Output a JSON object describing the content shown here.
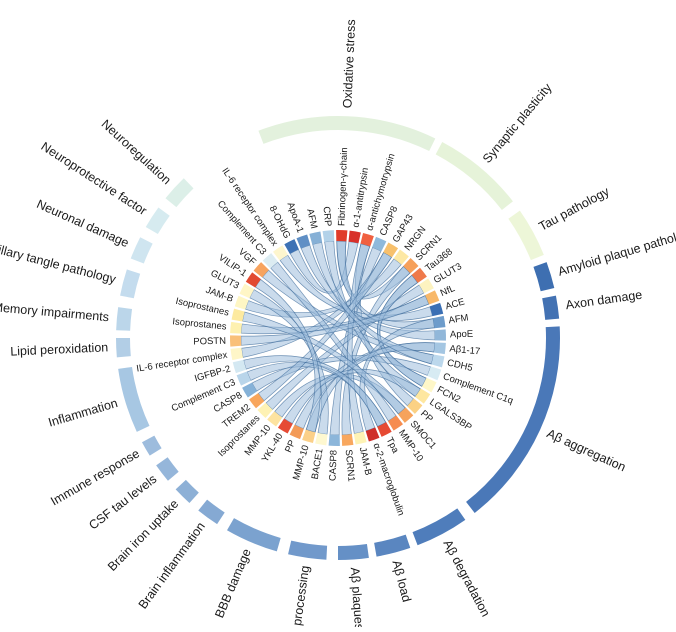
{
  "chart_data": {
    "type": "chord",
    "categories": [
      {
        "id": "oxidative-stress",
        "label": "Oxidative stress",
        "color": "#e3f1dd",
        "group": "outer"
      },
      {
        "id": "synaptic-plasticity",
        "label": "Synaptic plasticity",
        "color": "#e6f3d9",
        "group": "outer"
      },
      {
        "id": "tau-pathology",
        "label": "Tau pathology",
        "color": "#edf6d8",
        "group": "outer"
      },
      {
        "id": "amyloid-plaque-pathology",
        "label": "Amyloid plaque pathology",
        "color": "#3e6fb1",
        "group": "outer"
      },
      {
        "id": "axon-damage",
        "label": "Axon damage",
        "color": "#4372b3",
        "group": "outer"
      },
      {
        "id": "ab-aggregation",
        "label": "Aβ aggregation",
        "color": "#4a78b8",
        "group": "outer"
      },
      {
        "id": "ab-degradation",
        "label": "Aβ degradation",
        "color": "#4f7dbb",
        "group": "outer"
      },
      {
        "id": "ab-load",
        "label": "Aβ load",
        "color": "#5a86c0",
        "group": "outer"
      },
      {
        "id": "ab-plaques",
        "label": "Aβ plaques",
        "color": "#6590c6",
        "group": "outer"
      },
      {
        "id": "ab-processing",
        "label": "Aβ processing",
        "color": "#7199cb",
        "group": "outer"
      },
      {
        "id": "bbb-damage",
        "label": "BBB damage",
        "color": "#7ba2cf",
        "group": "outer"
      },
      {
        "id": "brain-inflammation",
        "label": "Brain inflammation",
        "color": "#85a9d3",
        "group": "outer"
      },
      {
        "id": "brain-iron-uptake",
        "label": "Brain iron uptake",
        "color": "#8db0d6",
        "group": "outer"
      },
      {
        "id": "csf-tau-levels",
        "label": "CSF tau levels",
        "color": "#95b6da",
        "group": "outer"
      },
      {
        "id": "immune-response",
        "label": "Immune response",
        "color": "#9dbcdd",
        "group": "outer"
      },
      {
        "id": "inflammation",
        "label": "Inflammation",
        "color": "#a7c7e3",
        "group": "outer"
      },
      {
        "id": "lipid-peroxidation",
        "label": "Lipid peroxidation",
        "color": "#b2cee6",
        "group": "outer"
      },
      {
        "id": "memory-impairments",
        "label": "Memory impairments",
        "color": "#bbd6ea",
        "group": "outer"
      },
      {
        "id": "neurofibrillary-tangle-pathology",
        "label": "Neurofibrillary tangle pathology",
        "color": "#c4dcee",
        "group": "outer"
      },
      {
        "id": "neuronal-damage",
        "label": "Neuronal damage",
        "color": "#cfe5f0",
        "group": "outer"
      },
      {
        "id": "neuroprotective-factor",
        "label": "Neuroprotective factor",
        "color": "#d6ebf0",
        "group": "outer"
      },
      {
        "id": "neuroregulation",
        "label": "Neuroregulation",
        "color": "#dcefe8",
        "group": "outer"
      }
    ],
    "biomarkers": [
      {
        "label": "Fibrinogen-γ-chain",
        "color": "#e03b2a"
      },
      {
        "label": "α-1-antitrypsin",
        "color": "#d8302a"
      },
      {
        "label": "α-antichymotrypsin",
        "color": "#f06040"
      },
      {
        "label": "CASP8",
        "color": "#8fb9db"
      },
      {
        "label": "GAP43",
        "color": "#f7c06c"
      },
      {
        "label": "NRGN",
        "color": "#fde8a4"
      },
      {
        "label": "SCRN1",
        "color": "#f6a05a"
      },
      {
        "label": "Tau368",
        "color": "#ef7a4a"
      },
      {
        "label": "GLUT3",
        "color": "#fdf3c0"
      },
      {
        "label": "NfL",
        "color": "#f8b86a"
      },
      {
        "label": "ACE",
        "color": "#3a6fb4"
      },
      {
        "label": "AFM",
        "color": "#6d9ccb"
      },
      {
        "label": "ApoE",
        "color": "#91b7d9"
      },
      {
        "label": "Aβ1-17",
        "color": "#a4c6e2"
      },
      {
        "label": "CDH5",
        "color": "#bcd8ec"
      },
      {
        "label": "Complement C1q",
        "color": "#d7ebf3"
      },
      {
        "label": "FCN2",
        "color": "#fef7c8"
      },
      {
        "label": "LGALS3BP",
        "color": "#fee7a0"
      },
      {
        "label": "PP",
        "color": "#fbd184"
      },
      {
        "label": "SMOC1",
        "color": "#f6a35c"
      },
      {
        "label": "MMP-10",
        "color": "#f68c4f"
      },
      {
        "label": "Tpa",
        "color": "#e64a33"
      },
      {
        "label": "α-2-macroglobulin",
        "color": "#cf2f2a"
      },
      {
        "label": "JAM-B",
        "color": "#fef3b5"
      },
      {
        "label": "SCRN1",
        "color": "#f8a75e"
      },
      {
        "label": "CASP8",
        "color": "#8cb6da"
      },
      {
        "label": "BACE1",
        "color": "#fef8d0"
      },
      {
        "label": "MMP-10",
        "color": "#fbd089"
      },
      {
        "label": "PP",
        "color": "#f39a57"
      },
      {
        "label": "YKL-40",
        "color": "#e64b35"
      },
      {
        "label": "MMP-10",
        "color": "#fde3a0"
      },
      {
        "label": "Isoprostanes",
        "color": "#fef2b4"
      },
      {
        "label": "TREM2",
        "color": "#f8a65c"
      },
      {
        "label": "CASP8",
        "color": "#86b2d8"
      },
      {
        "label": "Complement C3",
        "color": "#b9d5ea"
      },
      {
        "label": "IGFBP-2",
        "color": "#d4e8f2"
      },
      {
        "label": "IL-6 receptor complex",
        "color": "#fef6c8"
      },
      {
        "label": "POSTN",
        "color": "#f9c07a"
      },
      {
        "label": "Isoprostanes",
        "color": "#fef1b0"
      },
      {
        "label": "Isoprostanes",
        "color": "#fdeaa0"
      },
      {
        "label": "JAM-B",
        "color": "#fef6c4"
      },
      {
        "label": "GLUT3",
        "color": "#fff6c6"
      },
      {
        "label": "VILIP-1",
        "color": "#e24a31"
      },
      {
        "label": "VGF",
        "color": "#f7a35e"
      },
      {
        "label": "Complement C3",
        "color": "#dcecf2"
      },
      {
        "label": "IL-6 receptor complex",
        "color": "#fef6ce"
      },
      {
        "label": "8-OHdG",
        "color": "#3d72b5"
      },
      {
        "label": "ApoA-1",
        "color": "#5f8fc5"
      },
      {
        "label": "AFM",
        "color": "#86b0d6"
      },
      {
        "label": "CRP",
        "color": "#b3d2e9"
      }
    ],
    "links": [
      [
        0,
        6
      ],
      [
        1,
        46
      ],
      [
        2,
        18
      ],
      [
        3,
        25
      ],
      [
        4,
        36
      ],
      [
        5,
        40
      ],
      [
        6,
        24
      ],
      [
        7,
        16
      ],
      [
        8,
        31
      ],
      [
        9,
        38
      ],
      [
        10,
        45
      ],
      [
        11,
        0
      ],
      [
        12,
        47
      ],
      [
        13,
        28
      ],
      [
        14,
        43
      ],
      [
        15,
        33
      ],
      [
        16,
        7
      ],
      [
        17,
        49
      ],
      [
        19,
        30
      ],
      [
        20,
        44
      ],
      [
        21,
        34
      ],
      [
        22,
        11
      ],
      [
        23,
        2
      ],
      [
        26,
        41
      ],
      [
        27,
        13
      ],
      [
        29,
        17
      ],
      [
        32,
        4
      ],
      [
        35,
        21
      ],
      [
        37,
        9
      ],
      [
        39,
        19
      ],
      [
        42,
        27
      ],
      [
        48,
        14
      ]
    ]
  }
}
